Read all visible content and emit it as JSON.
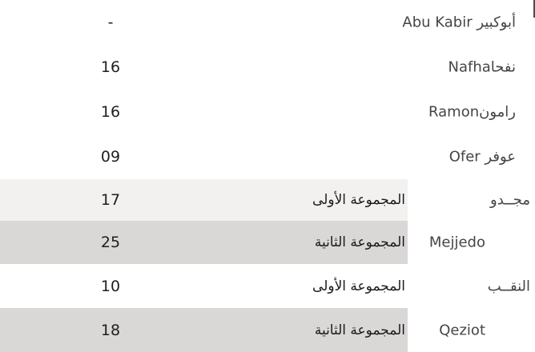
{
  "colors": {
    "row_band_light": "#f2f1f0",
    "row_band_dark": "#d9d8d6",
    "name_text": "#454545",
    "group_text": "#1a1a1a",
    "value_text": "#1f1f1f",
    "scrollbar": "#4a4a4a"
  },
  "table": {
    "columns": [
      "prison-name",
      "group-label",
      "count"
    ],
    "rows": [
      {
        "name": "أبوكبير Abu Kabir",
        "group": "",
        "value": "-",
        "band": "none"
      },
      {
        "name": "نفحاNafha",
        "group": "",
        "value": "16",
        "band": "none"
      },
      {
        "name": "رامونRamon",
        "group": "",
        "value": "16",
        "band": "none"
      },
      {
        "name": "عوفر Ofer",
        "group": "",
        "value": "09",
        "band": "none"
      },
      {
        "name": "مجــدو",
        "group": "المجموعة الأولى",
        "value": "17",
        "band": "light"
      },
      {
        "name": "Mejjedo",
        "group": "المجموعة الثانية",
        "value": "25",
        "band": "dark"
      },
      {
        "name": "النقــب",
        "group": "المجموعة الأولى",
        "value": "10",
        "band": "none"
      },
      {
        "name": "Qeziot",
        "group": "المجموعة الثانية",
        "value": "18",
        "band": "dark"
      }
    ]
  }
}
